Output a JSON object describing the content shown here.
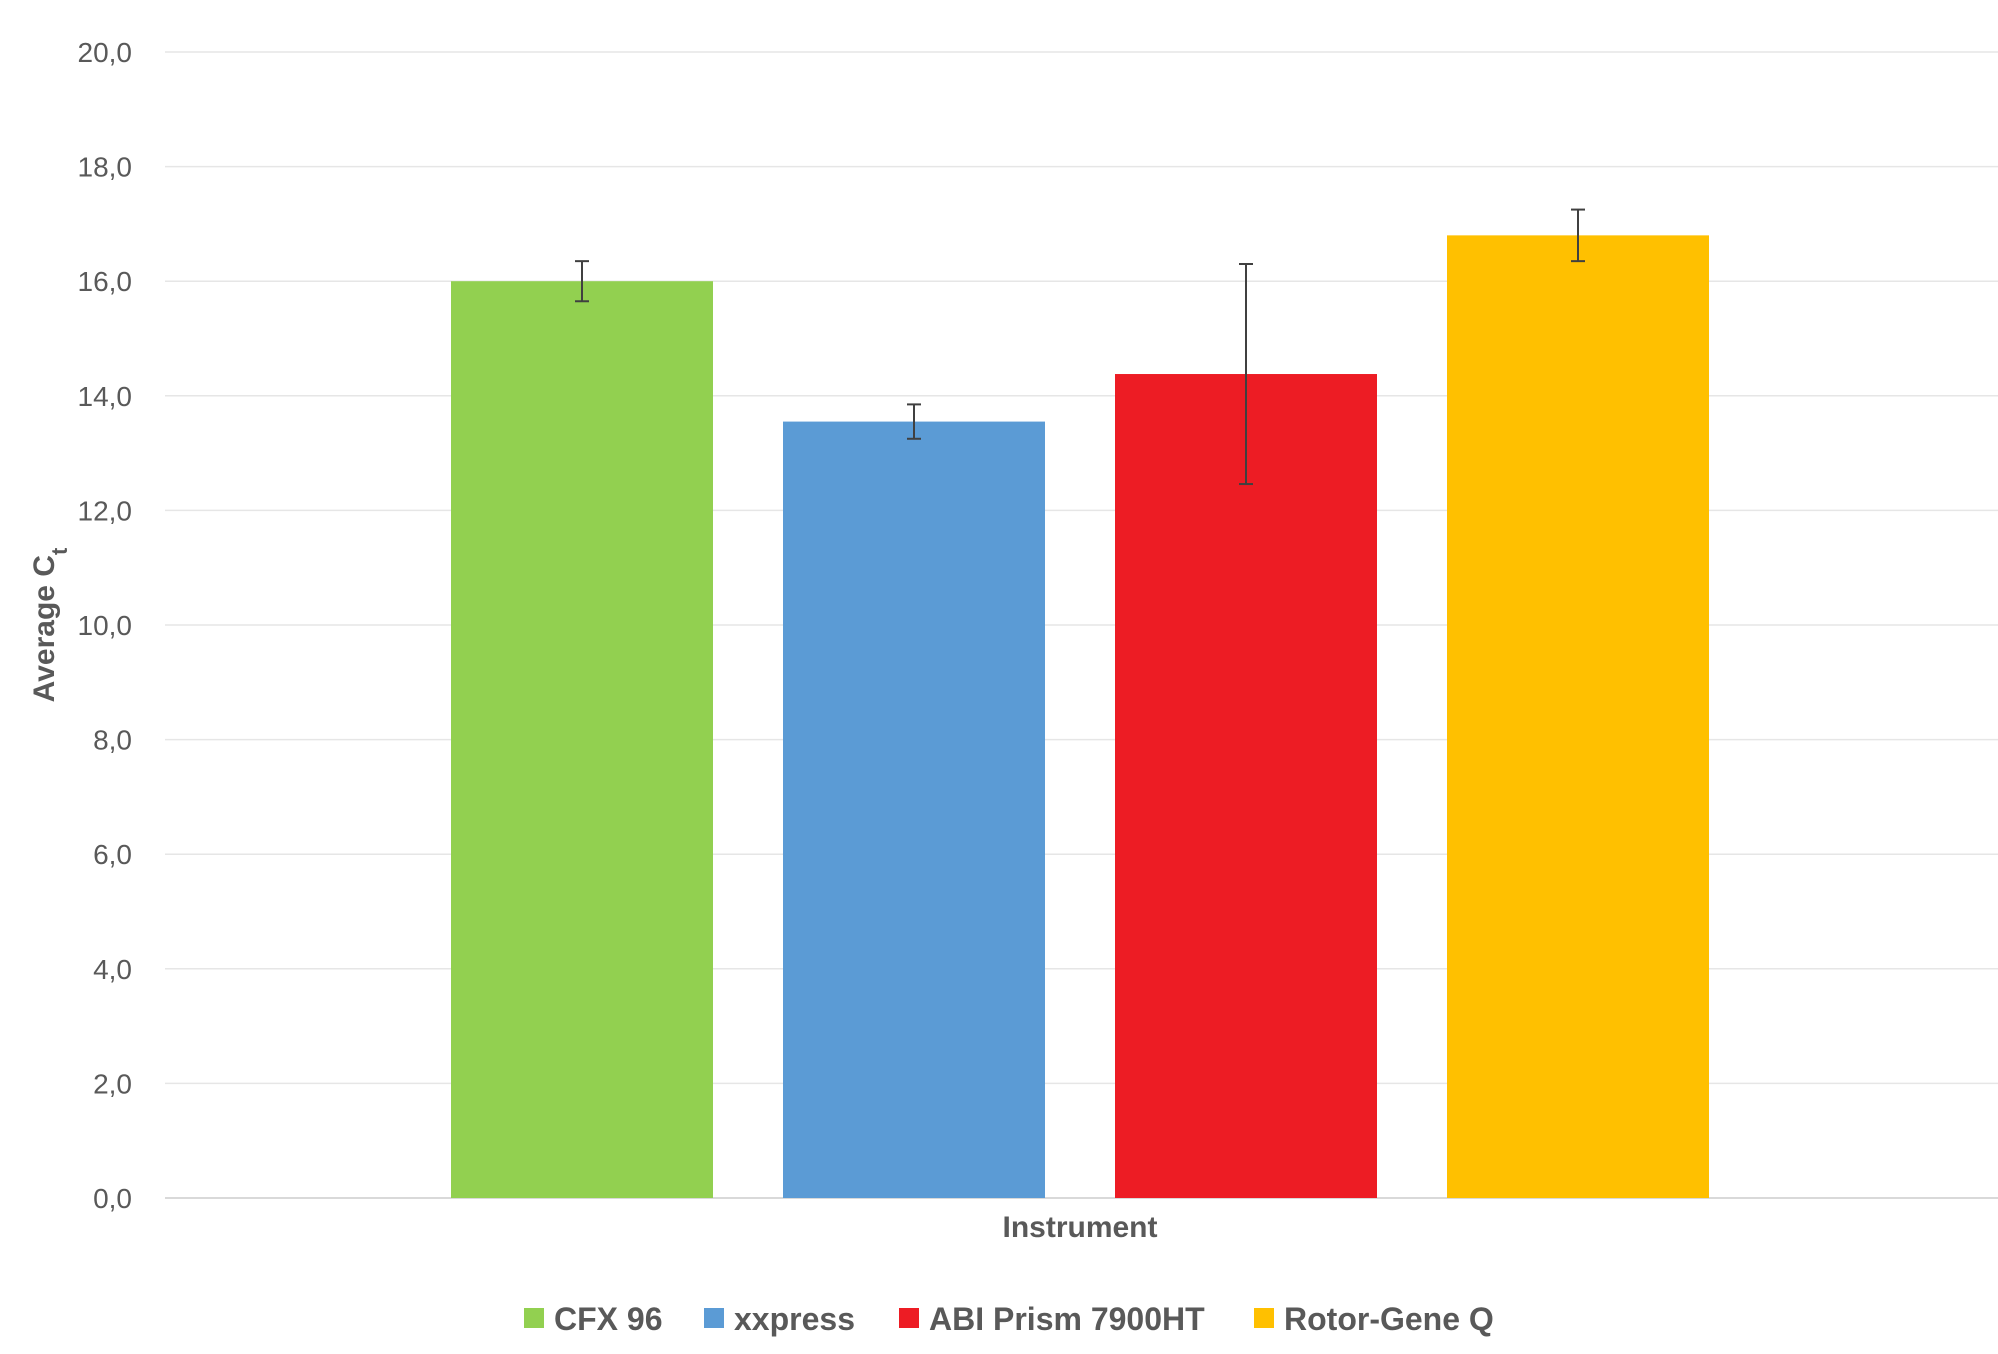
{
  "chart_data": {
    "type": "bar",
    "title": "",
    "xlabel": "Instrument",
    "ylabel": {
      "main": "Average C",
      "subscript": "t"
    },
    "ylim": [
      0,
      20
    ],
    "ytick_step": 2,
    "ytick_labels": [
      "0,0",
      "2,0",
      "4,0",
      "6,0",
      "8,0",
      "10,0",
      "12,0",
      "14,0",
      "16,0",
      "18,0",
      "20,0"
    ],
    "grid": true,
    "legend_position": "bottom",
    "series": [
      {
        "name": "CFX 96",
        "value": 16.0,
        "error": 0.35,
        "color": "#92D050"
      },
      {
        "name": "xxpress",
        "value": 13.55,
        "error": 0.3,
        "color": "#5B9BD5"
      },
      {
        "name": "ABI Prism 7900HT",
        "value": 14.38,
        "error": 1.92,
        "color": "#ED1C24"
      },
      {
        "name": "Rotor-Gene Q",
        "value": 16.8,
        "error": 0.45,
        "color": "#FFC000"
      }
    ]
  }
}
